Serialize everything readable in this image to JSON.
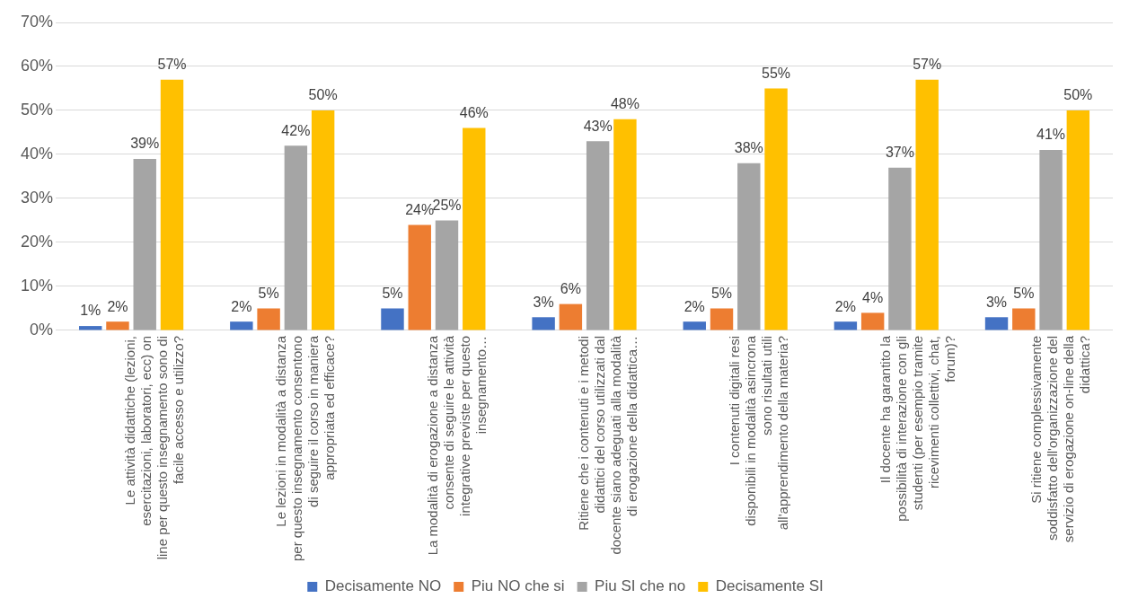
{
  "chart_data": {
    "type": "bar",
    "categories": [
      "Le attività didattiche (lezioni, esercitazioni, laboratori, ecc) on line per questo insegnamento sono di facile accesso e utilizzo?",
      "Le lezioni in modalità a distanza per questo insegnamento consentono di seguire il corso in maniera appropriata ed efficace?",
      "La modalità di erogazione a distanza consente di seguire le attività integrative previste per questo insegnamento…",
      "Ritiene che i contenuti e i metodi didattici del corso utilizzati dal docente siano adeguati alla modalità di erogazione della didattica…",
      "I contenuti digitali resi disponibili in modalità asincrona sono risultati utili all'apprendimento della materia?",
      "Il docente ha garantito la possibilità di interazione con gli studenti (per esempio tramite ricevimenti collettivi, chat, forum)?",
      "Si ritiene complessivamente soddisfatto dell'organizzazione del servizio di erogazione on-line della didattica?"
    ],
    "series": [
      {
        "name": "Decisamente NO",
        "color": "#4472c4",
        "values": [
          1,
          2,
          5,
          3,
          2,
          2,
          3
        ],
        "value_labels": [
          "1%",
          "2%",
          "5%",
          "3%",
          "2%",
          "2%",
          "3%"
        ]
      },
      {
        "name": "Piu NO che si",
        "color": "#ed7d31",
        "values": [
          2,
          5,
          24,
          6,
          5,
          4,
          5
        ],
        "value_labels": [
          "2%",
          "5%",
          "24%",
          "6%",
          "5%",
          "4%",
          "5%"
        ]
      },
      {
        "name": "Piu SI che no",
        "color": "#a5a5a5",
        "values": [
          39,
          42,
          25,
          43,
          38,
          37,
          41
        ],
        "value_labels": [
          "39%",
          "42%",
          "25%",
          "43%",
          "38%",
          "37%",
          "41%"
        ]
      },
      {
        "name": "Decisamente SI",
        "color": "#ffc000",
        "values": [
          57,
          50,
          46,
          48,
          55,
          57,
          50
        ],
        "value_labels": [
          "57%",
          "50%",
          "46%",
          "48%",
          "55%",
          "57%",
          "50%"
        ]
      }
    ],
    "ylim": [
      0,
      70
    ],
    "yticks": [
      {
        "value": 0,
        "label": "0%"
      },
      {
        "value": 10,
        "label": "10%"
      },
      {
        "value": 20,
        "label": "20%"
      },
      {
        "value": 30,
        "label": "30%"
      },
      {
        "value": 40,
        "label": "40%"
      },
      {
        "value": 50,
        "label": "50%"
      },
      {
        "value": 60,
        "label": "60%"
      },
      {
        "value": 70,
        "label": "70%"
      }
    ],
    "grid": "y",
    "legend": "bottom"
  }
}
